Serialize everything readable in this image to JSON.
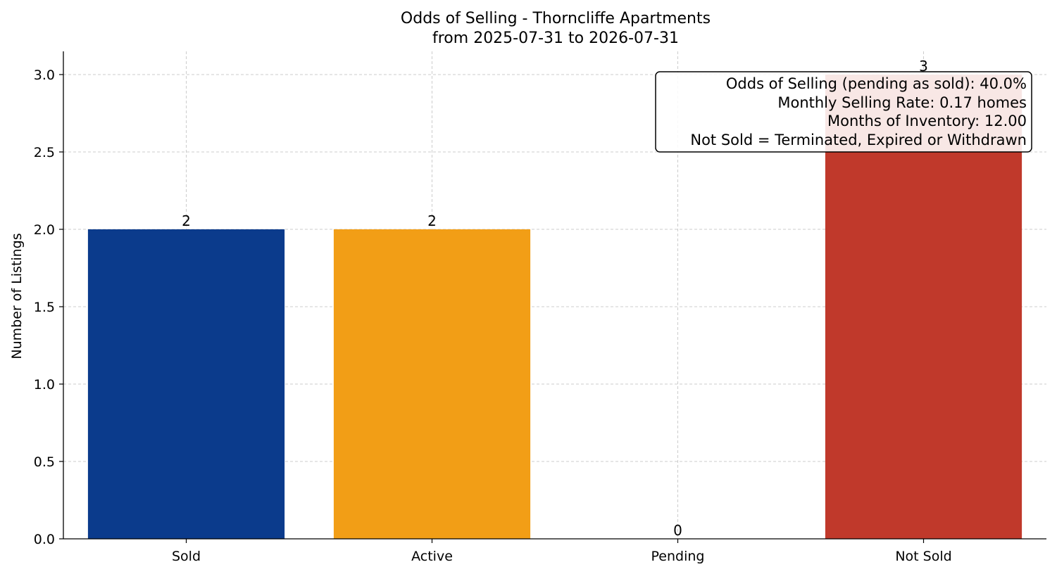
{
  "chart_data": {
    "type": "bar",
    "title": "Odds of Selling - Thorncliffe Apartments",
    "subtitle": "from 2025-07-31 to 2026-07-31",
    "xlabel": "",
    "ylabel": "Number of Listings",
    "categories": [
      "Sold",
      "Active",
      "Pending",
      "Not Sold"
    ],
    "values": [
      2,
      2,
      0,
      3
    ],
    "data_labels": [
      "2",
      "2",
      "0",
      "3"
    ],
    "colors": [
      "#0b3b8c",
      "#f29e16",
      "#9e9e9e",
      "#c0392b"
    ],
    "ylim": [
      0,
      3.15
    ],
    "yticks": [
      0.0,
      0.5,
      1.0,
      1.5,
      2.0,
      2.5,
      3.0
    ],
    "ytick_labels": [
      "0.0",
      "0.5",
      "1.0",
      "1.5",
      "2.0",
      "2.5",
      "3.0"
    ],
    "grid": true,
    "annotation": {
      "placement": "top-right",
      "lines": [
        "Odds of Selling (pending as sold): 40.0%",
        "Monthly Selling Rate: 0.17 homes",
        "Months of Inventory: 12.00",
        "Not Sold = Terminated, Expired or Withdrawn"
      ]
    }
  }
}
